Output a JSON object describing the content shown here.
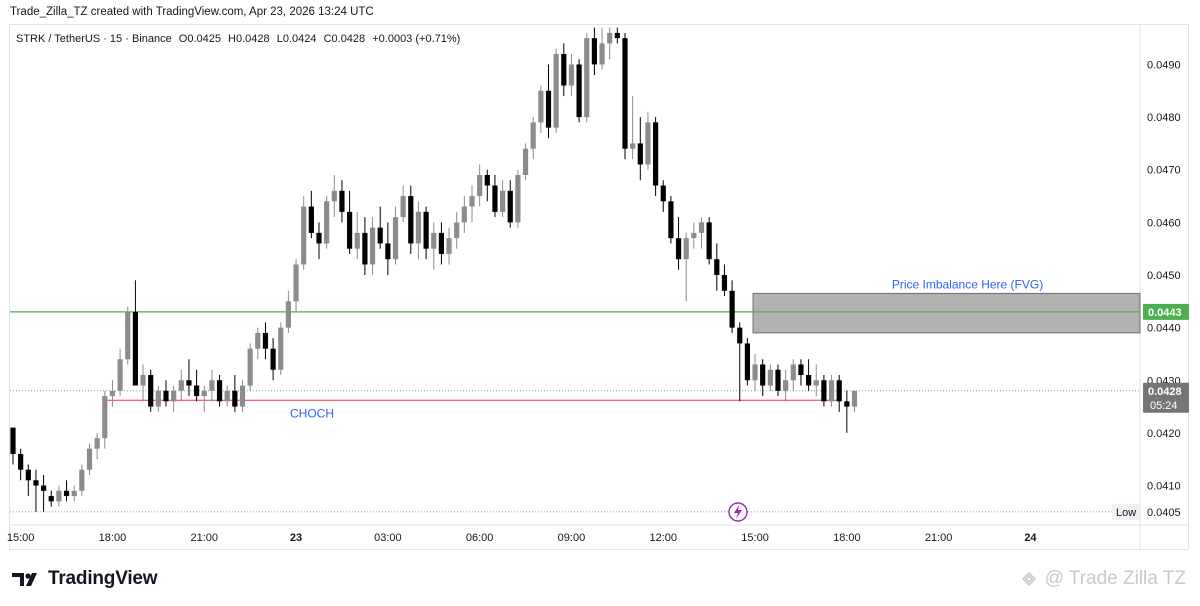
{
  "header": {
    "credit": "Trade_Zilla_TZ created with TradingView.com, Apr 23, 2026 13:24 UTC"
  },
  "legend": {
    "symbol": "STRK / TetherUS · 15 · Binance",
    "open_label": "O",
    "open": "0.0425",
    "high_label": "H",
    "high": "0.0428",
    "low_label": "L",
    "low": "0.0424",
    "close_label": "C",
    "close": "0.0428",
    "change": "+0.0003 (+0.71%)"
  },
  "footer": {
    "brand": "TradingView",
    "watermark": "@ Trade Zilla TZ"
  },
  "colors": {
    "up": "#8c8c8c",
    "down": "#000000",
    "green_line": "#4caf50",
    "red_line": "#f23645",
    "fvg_fill": "#b2b2b2",
    "label_blue": "#2962ff",
    "price_tag": "#757575"
  },
  "icons": {
    "brand": "tradingview-logo",
    "watermark": "watermark-link-icon",
    "event": "lightning-icon"
  },
  "chart_data": {
    "type": "candlestick",
    "interval": "15",
    "ylim": [
      0.04025,
      0.04975
    ],
    "y_ticks": [
      "0.0490",
      "0.0480",
      "0.0470",
      "0.0460",
      "0.0450",
      "0.0440",
      "0.0430",
      "0.0420",
      "0.0410"
    ],
    "x_ticks": [
      "15:00",
      "18:00",
      "21:00",
      "23",
      "03:00",
      "06:00",
      "09:00",
      "12:00",
      "15:00",
      "18:00",
      "21:00",
      "24"
    ],
    "x_tick_bold": [
      "23",
      "24"
    ],
    "bar_times_hours_from_first": 0.25,
    "candles": [
      [
        0.0421,
        0.0421,
        0.0414,
        0.0416
      ],
      [
        0.0416,
        0.0417,
        0.0411,
        0.0413
      ],
      [
        0.0413,
        0.0414,
        0.0408,
        0.0411
      ],
      [
        0.0411,
        0.0413,
        0.0405,
        0.041
      ],
      [
        0.041,
        0.0412,
        0.0405,
        0.0409
      ],
      [
        0.0408,
        0.0409,
        0.0406,
        0.0407
      ],
      [
        0.0407,
        0.041,
        0.0406,
        0.0409
      ],
      [
        0.0409,
        0.0411,
        0.0407,
        0.0408
      ],
      [
        0.0408,
        0.041,
        0.0407,
        0.0409
      ],
      [
        0.0409,
        0.0414,
        0.0408,
        0.0413
      ],
      [
        0.0413,
        0.0418,
        0.0412,
        0.0417
      ],
      [
        0.0417,
        0.042,
        0.0415,
        0.0419
      ],
      [
        0.0419,
        0.0428,
        0.0417,
        0.0427
      ],
      [
        0.0427,
        0.043,
        0.0425,
        0.0428
      ],
      [
        0.0428,
        0.0436,
        0.0427,
        0.0434
      ],
      [
        0.0434,
        0.0444,
        0.0433,
        0.0443
      ],
      [
        0.0443,
        0.0449,
        0.0429,
        0.0429
      ],
      [
        0.0429,
        0.0433,
        0.0426,
        0.0431
      ],
      [
        0.0431,
        0.0432,
        0.0424,
        0.0425
      ],
      [
        0.0425,
        0.0429,
        0.0424,
        0.0428
      ],
      [
        0.0428,
        0.043,
        0.0425,
        0.0426
      ],
      [
        0.0426,
        0.0429,
        0.0424,
        0.0428
      ],
      [
        0.0428,
        0.0432,
        0.0426,
        0.043
      ],
      [
        0.043,
        0.0434,
        0.0427,
        0.0429
      ],
      [
        0.0429,
        0.0432,
        0.0426,
        0.0427
      ],
      [
        0.0427,
        0.0429,
        0.0424,
        0.0428
      ],
      [
        0.0428,
        0.0432,
        0.0426,
        0.043
      ],
      [
        0.043,
        0.0431,
        0.0425,
        0.0426
      ],
      [
        0.0426,
        0.0429,
        0.0425,
        0.0428
      ],
      [
        0.0428,
        0.0431,
        0.0424,
        0.0425
      ],
      [
        0.0425,
        0.043,
        0.0424,
        0.0429
      ],
      [
        0.0429,
        0.0437,
        0.0428,
        0.0436
      ],
      [
        0.0436,
        0.044,
        0.0434,
        0.0439
      ],
      [
        0.0439,
        0.0441,
        0.0434,
        0.0436
      ],
      [
        0.0436,
        0.0438,
        0.043,
        0.0432
      ],
      [
        0.0432,
        0.0441,
        0.0431,
        0.044
      ],
      [
        0.044,
        0.0447,
        0.0439,
        0.0445
      ],
      [
        0.0445,
        0.0453,
        0.0443,
        0.0452
      ],
      [
        0.0452,
        0.0465,
        0.0451,
        0.0463
      ],
      [
        0.0463,
        0.0466,
        0.0457,
        0.0458
      ],
      [
        0.0458,
        0.046,
        0.0453,
        0.0456
      ],
      [
        0.0456,
        0.0465,
        0.0455,
        0.0464
      ],
      [
        0.0464,
        0.0469,
        0.0461,
        0.0466
      ],
      [
        0.0466,
        0.0468,
        0.046,
        0.0462
      ],
      [
        0.0462,
        0.0466,
        0.0454,
        0.0455
      ],
      [
        0.0455,
        0.0462,
        0.0453,
        0.0458
      ],
      [
        0.0458,
        0.0461,
        0.045,
        0.0452
      ],
      [
        0.0452,
        0.0461,
        0.045,
        0.0459
      ],
      [
        0.0459,
        0.0463,
        0.0455,
        0.0456
      ],
      [
        0.0456,
        0.046,
        0.045,
        0.0453
      ],
      [
        0.0453,
        0.0463,
        0.0452,
        0.0461
      ],
      [
        0.0461,
        0.0467,
        0.046,
        0.0465
      ],
      [
        0.0465,
        0.0467,
        0.0454,
        0.0456
      ],
      [
        0.0456,
        0.0464,
        0.0453,
        0.0462
      ],
      [
        0.0462,
        0.0463,
        0.0453,
        0.0455
      ],
      [
        0.0455,
        0.046,
        0.0451,
        0.0458
      ],
      [
        0.0458,
        0.046,
        0.0452,
        0.0454
      ],
      [
        0.0454,
        0.0459,
        0.0452,
        0.0457
      ],
      [
        0.0457,
        0.0462,
        0.0455,
        0.046
      ],
      [
        0.046,
        0.0465,
        0.0458,
        0.0463
      ],
      [
        0.0463,
        0.0467,
        0.046,
        0.0465
      ],
      [
        0.0465,
        0.0471,
        0.0463,
        0.0469
      ],
      [
        0.0469,
        0.047,
        0.0464,
        0.0467
      ],
      [
        0.0467,
        0.0469,
        0.0461,
        0.0462
      ],
      [
        0.0462,
        0.0468,
        0.0461,
        0.0466
      ],
      [
        0.0466,
        0.0468,
        0.0459,
        0.046
      ],
      [
        0.046,
        0.047,
        0.0459,
        0.0469
      ],
      [
        0.0469,
        0.0475,
        0.0468,
        0.0474
      ],
      [
        0.0474,
        0.048,
        0.0472,
        0.0479
      ],
      [
        0.0479,
        0.0486,
        0.0477,
        0.0485
      ],
      [
        0.0485,
        0.049,
        0.0476,
        0.0478
      ],
      [
        0.0478,
        0.0493,
        0.0477,
        0.0492
      ],
      [
        0.0492,
        0.0494,
        0.0484,
        0.0486
      ],
      [
        0.0486,
        0.0492,
        0.0484,
        0.049
      ],
      [
        0.049,
        0.0491,
        0.0479,
        0.048
      ],
      [
        0.048,
        0.0496,
        0.0479,
        0.0495
      ],
      [
        0.0495,
        0.0497,
        0.0488,
        0.049
      ],
      [
        0.049,
        0.0497,
        0.0489,
        0.0494
      ],
      [
        0.0494,
        0.0497,
        0.0491,
        0.0496
      ],
      [
        0.0496,
        0.0497,
        0.0494,
        0.0495
      ],
      [
        0.0495,
        0.0496,
        0.0472,
        0.0474
      ],
      [
        0.0474,
        0.0484,
        0.0472,
        0.0475
      ],
      [
        0.0475,
        0.048,
        0.0468,
        0.0471
      ],
      [
        0.0471,
        0.0481,
        0.047,
        0.0479
      ],
      [
        0.0479,
        0.048,
        0.0465,
        0.0467
      ],
      [
        0.0467,
        0.0468,
        0.0462,
        0.0464
      ],
      [
        0.0464,
        0.0465,
        0.0456,
        0.0457
      ],
      [
        0.0457,
        0.0461,
        0.0451,
        0.0453
      ],
      [
        0.0453,
        0.0458,
        0.0445,
        0.0457
      ],
      [
        0.0457,
        0.046,
        0.0455,
        0.0458
      ],
      [
        0.0458,
        0.0461,
        0.0455,
        0.046
      ],
      [
        0.046,
        0.0461,
        0.0452,
        0.0453
      ],
      [
        0.0453,
        0.0456,
        0.0447,
        0.045
      ],
      [
        0.045,
        0.0452,
        0.0446,
        0.0447
      ],
      [
        0.0447,
        0.0449,
        0.0439,
        0.044
      ],
      [
        0.044,
        0.0441,
        0.0426,
        0.0437
      ],
      [
        0.0437,
        0.0438,
        0.0429,
        0.043
      ],
      [
        0.043,
        0.0435,
        0.0428,
        0.0433
      ],
      [
        0.0433,
        0.0434,
        0.0427,
        0.0429
      ],
      [
        0.0429,
        0.0433,
        0.0428,
        0.0432
      ],
      [
        0.0432,
        0.0433,
        0.0427,
        0.0428
      ],
      [
        0.0428,
        0.0432,
        0.0426,
        0.043
      ],
      [
        0.043,
        0.0434,
        0.0428,
        0.0433
      ],
      [
        0.0433,
        0.0434,
        0.0429,
        0.0431
      ],
      [
        0.0431,
        0.0434,
        0.0428,
        0.0429
      ],
      [
        0.0429,
        0.0433,
        0.0427,
        0.043
      ],
      [
        0.043,
        0.0431,
        0.0425,
        0.0426
      ],
      [
        0.0426,
        0.0431,
        0.0425,
        0.043
      ],
      [
        0.043,
        0.0431,
        0.0424,
        0.0426
      ],
      [
        0.0426,
        0.0428,
        0.042,
        0.0425
      ],
      [
        0.0425,
        0.0428,
        0.0424,
        0.0428
      ]
    ],
    "fvg_zone": {
      "top": 0.04465,
      "bottom": 0.0439,
      "label": "Price Imbalance Here (FVG)",
      "from_bar": 97
    },
    "horizontal_line": {
      "price": 0.0443,
      "label": "0.0443"
    },
    "choch": {
      "price": 0.04262,
      "label": "CHOCH",
      "from_bar": 12,
      "to_bar": 108
    },
    "current_price": {
      "price": "0.0428",
      "countdown": "05:24"
    },
    "low_marker": {
      "label": "Low",
      "price": "0.0405"
    }
  }
}
